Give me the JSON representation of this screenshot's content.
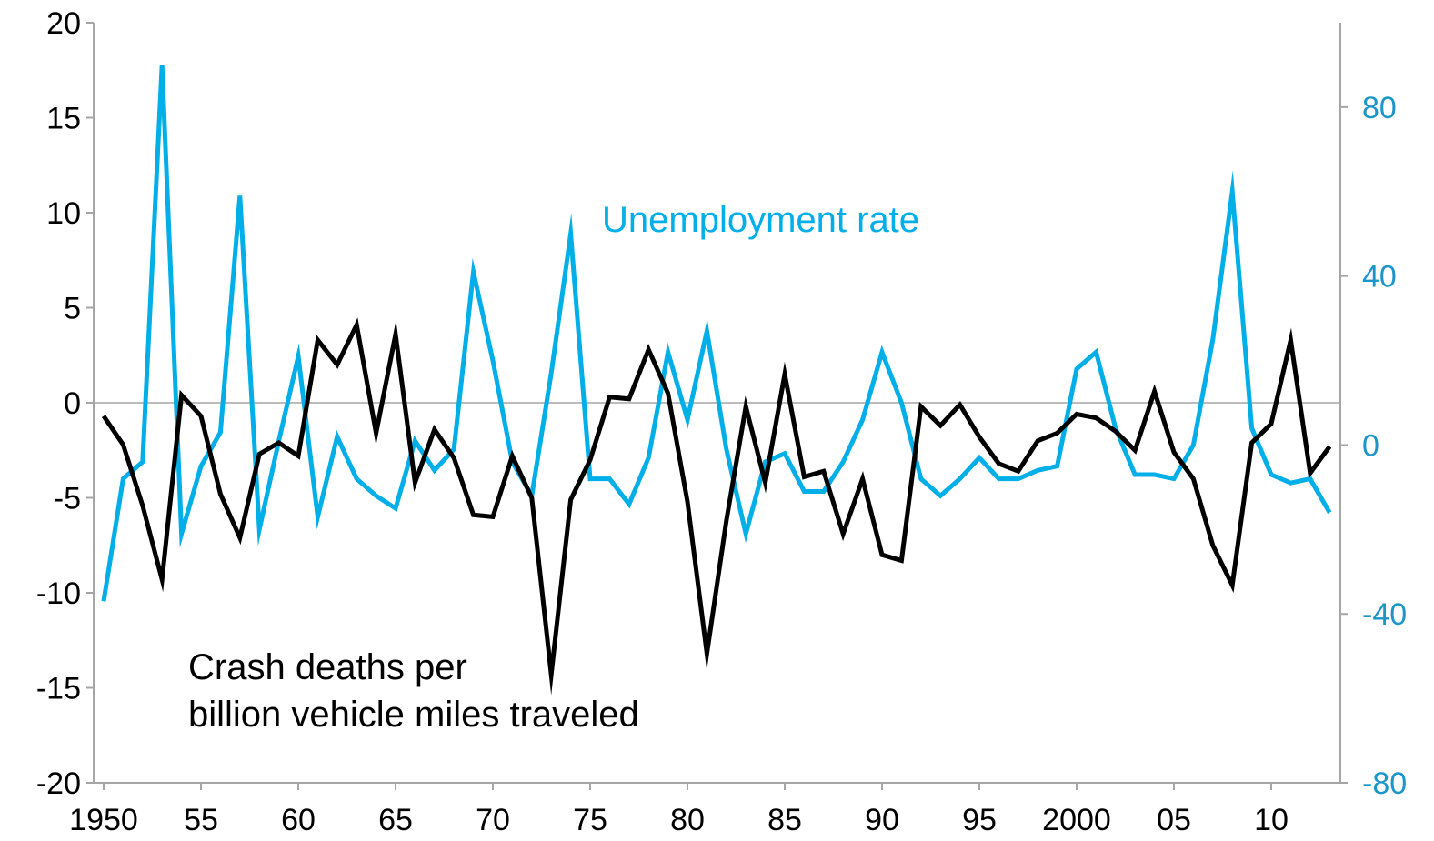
{
  "chart_data": {
    "type": "line",
    "title": "",
    "y_left": {
      "ylim": [
        -20,
        20
      ],
      "ticks": [
        "20",
        "15",
        "10",
        "5",
        "0",
        "-5",
        "-10",
        "-15",
        "-20"
      ]
    },
    "y_right": {
      "ylim": [
        -80,
        100
      ],
      "ticks": [
        "80",
        "40",
        "0",
        "-40",
        "-80"
      ]
    },
    "x": {
      "xlim": [
        1950,
        2013
      ],
      "tick_labels": [
        "1950",
        "55",
        "60",
        "65",
        "70",
        "75",
        "80",
        "85",
        "90",
        "95",
        "2000",
        "05",
        "10"
      ]
    },
    "grid": false,
    "colors": {
      "crash": "#000000",
      "unemployment": "#00aee8",
      "right_axis": "#1a96c8",
      "zero_line": "#a6a6a6"
    },
    "series": [
      {
        "name": "Crash deaths per billion vehicle miles traveled",
        "label_lines": [
          "Crash deaths per",
          "billion vehicle miles traveled"
        ],
        "axis": "left",
        "x": [
          1950,
          1951,
          1952,
          1953,
          1954,
          1955,
          1956,
          1957,
          1958,
          1959,
          1960,
          1961,
          1962,
          1963,
          1964,
          1965,
          1966,
          1967,
          1968,
          1969,
          1970,
          1971,
          1972,
          1973,
          1974,
          1975,
          1976,
          1977,
          1978,
          1979,
          1980,
          1981,
          1982,
          1983,
          1984,
          1985,
          1986,
          1987,
          1988,
          1989,
          1990,
          1991,
          1992,
          1993,
          1994,
          1995,
          1996,
          1997,
          1998,
          1999,
          2000,
          2001,
          2002,
          2003,
          2004,
          2005,
          2006,
          2007,
          2008,
          2009,
          2010,
          2011,
          2012,
          2013
        ],
        "values": [
          -0.7,
          -2.2,
          -5.4,
          -9.3,
          0.4,
          -0.7,
          -4.8,
          -7.1,
          -2.7,
          -2.1,
          -2.8,
          3.3,
          2.0,
          4.1,
          -1.6,
          3.6,
          -4.2,
          -1.4,
          -2.9,
          -5.9,
          -6.0,
          -2.8,
          -5.0,
          -14.3,
          -5.1,
          -3.0,
          0.3,
          0.2,
          2.8,
          0.5,
          -5.2,
          -13.2,
          -6.2,
          -0.2,
          -4.2,
          1.5,
          -3.9,
          -3.6,
          -6.9,
          -4.0,
          -8.0,
          -8.3,
          -0.2,
          -1.2,
          -0.1,
          -1.8,
          -3.2,
          -3.6,
          -2.0,
          -1.6,
          -0.6,
          -0.8,
          -1.5,
          -2.5,
          0.6,
          -2.6,
          -4.0,
          -7.5,
          -9.6,
          -2.1,
          -1.1,
          3.3,
          -3.7,
          -2.3
        ]
      },
      {
        "name": "Unemployment rate",
        "axis": "right",
        "x": [
          1950,
          1951,
          1952,
          1953,
          1954,
          1955,
          1956,
          1957,
          1958,
          1959,
          1960,
          1961,
          1962,
          1963,
          1964,
          1965,
          1966,
          1967,
          1968,
          1969,
          1970,
          1971,
          1972,
          1973,
          1974,
          1975,
          1976,
          1977,
          1978,
          1979,
          1980,
          1981,
          1982,
          1983,
          1984,
          1985,
          1986,
          1987,
          1988,
          1989,
          1990,
          1991,
          1992,
          1993,
          1994,
          1995,
          1996,
          1997,
          1998,
          1999,
          2000,
          2001,
          2002,
          2003,
          2004,
          2005,
          2006,
          2007,
          2008,
          2009,
          2010,
          2011,
          2012,
          2013
        ],
        "values": [
          -37,
          -8,
          -4,
          90,
          -21,
          -5,
          3,
          59,
          -20,
          1,
          21,
          -17,
          2,
          -8,
          -12,
          -15,
          1,
          -6,
          -1,
          41,
          20,
          -4,
          -12,
          17,
          50,
          -8,
          -8,
          -14,
          -3,
          22,
          6,
          27,
          -1,
          -21,
          -4,
          -2,
          -11,
          -11,
          -4,
          6,
          22,
          10,
          -8,
          -12,
          -8,
          -3,
          -8,
          -8,
          -6,
          -5,
          18,
          22,
          4,
          -7,
          -7,
          -8,
          0,
          25,
          60,
          4,
          -7,
          -9,
          -8,
          -16
        ]
      }
    ]
  }
}
